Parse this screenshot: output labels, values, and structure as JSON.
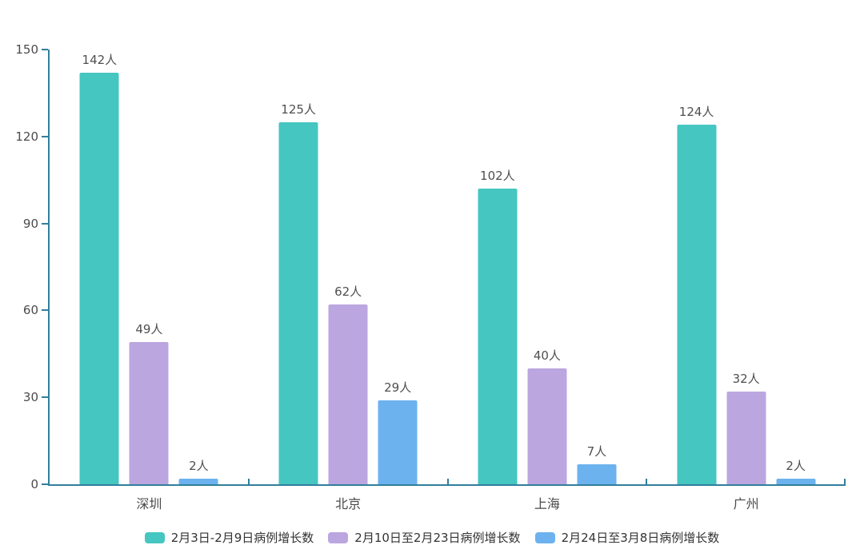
{
  "chart_data": {
    "type": "bar",
    "categories": [
      "深圳",
      "北京",
      "上海",
      "广州"
    ],
    "series": [
      {
        "name": "2月3日-2月9日病例增长数",
        "color": "#45c6c1",
        "values": [
          142,
          125,
          102,
          124
        ]
      },
      {
        "name": "2月10日至2月23日病例增长数",
        "color": "#bba6e0",
        "values": [
          49,
          62,
          40,
          32
        ]
      },
      {
        "name": "2月24日至3月8日病例增长数",
        "color": "#6cb2ef",
        "values": [
          2,
          29,
          7,
          2
        ]
      }
    ],
    "value_unit": "人",
    "y_ticks": [
      0,
      30,
      60,
      90,
      120,
      150
    ],
    "ylim": [
      0,
      150
    ],
    "grid": false,
    "legend_position": "bottom-center",
    "axis_color": "#317f9b",
    "xlabel": "",
    "ylabel": ""
  }
}
